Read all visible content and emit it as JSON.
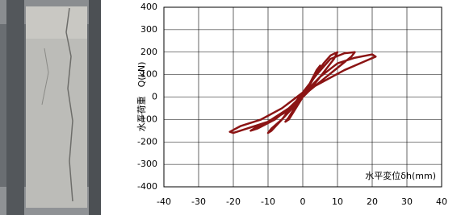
{
  "chart_data": {
    "type": "line",
    "x_label": "水平変位δh(mm)",
    "y_label": "水平荷重　Q(kN)",
    "x": [
      0,
      2,
      4,
      5,
      4,
      2,
      0,
      -2,
      -4,
      -5,
      -4,
      -2,
      0,
      3,
      6,
      8,
      10,
      9,
      6,
      3,
      0,
      -3,
      -6,
      -9,
      -10,
      -9,
      -6,
      -3,
      0,
      4,
      8,
      12,
      15,
      14,
      10,
      6,
      2,
      -2,
      -6,
      -10,
      -14,
      -15,
      -13,
      -8,
      -4,
      0,
      5,
      10,
      15,
      20,
      21,
      18,
      12,
      6,
      0,
      -6,
      -12,
      -18,
      -21,
      -20,
      -16,
      -10,
      -4,
      0
    ],
    "values": [
      0,
      60,
      110,
      140,
      120,
      60,
      10,
      -40,
      -90,
      -110,
      -100,
      -50,
      0,
      80,
      150,
      185,
      200,
      170,
      110,
      50,
      0,
      -50,
      -100,
      -140,
      -160,
      -150,
      -100,
      -40,
      20,
      100,
      170,
      195,
      200,
      180,
      130,
      80,
      30,
      -30,
      -70,
      -110,
      -140,
      -150,
      -140,
      -100,
      -50,
      10,
      90,
      150,
      175,
      190,
      180,
      160,
      120,
      70,
      20,
      -50,
      -100,
      -130,
      -155,
      -160,
      -140,
      -110,
      -60,
      0
    ],
    "color": "#8b1414",
    "xlim": [
      -40,
      40
    ],
    "xticks": [
      -40,
      -30,
      -20,
      -10,
      0,
      10,
      20,
      30,
      40
    ],
    "ylim": [
      -400,
      400
    ],
    "yticks": [
      -400,
      -300,
      -200,
      -100,
      0,
      100,
      200,
      300,
      400
    ],
    "grid": true
  }
}
